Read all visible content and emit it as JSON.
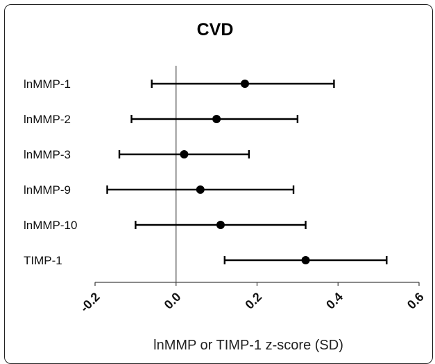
{
  "chart_data": {
    "type": "forest",
    "title": "CVD",
    "xlabel": "lnMMP or TIMP-1 z-score (SD)",
    "ylabel": "",
    "xlim": [
      -0.2,
      0.6
    ],
    "xticks": [
      -0.2,
      0.0,
      0.2,
      0.4,
      0.6
    ],
    "xtick_labels": [
      "-0.2",
      "0.0",
      "0.2",
      "0.4",
      "0.6"
    ],
    "reference_line": 0.0,
    "grid": false,
    "categories": [
      "lnMMP-1",
      "lnMMP-2",
      "lnMMP-3",
      "lnMMP-9",
      "lnMMP-10",
      "TIMP-1"
    ],
    "series": [
      {
        "estimate": [
          0.17,
          0.1,
          0.02,
          0.06,
          0.11,
          0.32
        ],
        "lower": [
          -0.06,
          -0.11,
          -0.14,
          -0.17,
          -0.1,
          0.12
        ],
        "upper": [
          0.39,
          0.3,
          0.18,
          0.29,
          0.32,
          0.52
        ]
      }
    ]
  },
  "colors": {
    "marker": "#000000",
    "axis": "#444444",
    "border": "#222222"
  }
}
